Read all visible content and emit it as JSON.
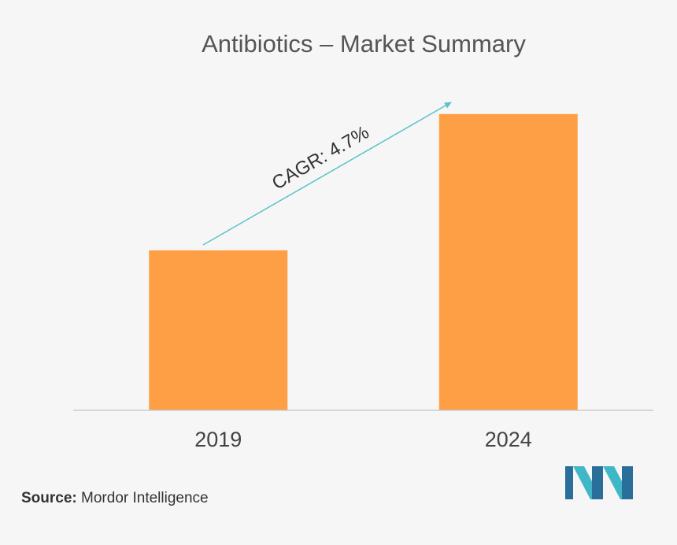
{
  "chart_data": {
    "type": "bar",
    "title": "Antibiotics – Market Summary",
    "categories": [
      "2019",
      "2024"
    ],
    "values": [
      54,
      100
    ],
    "xlabel": "",
    "ylabel": "",
    "ylim": [
      0,
      105
    ],
    "grid": false,
    "annotation": "CAGR: 4.7%",
    "colors": {
      "bar": "#ff9f45",
      "arrow": "#5bc2c9",
      "axis": "#cccccc",
      "text": "#555555"
    }
  },
  "source": {
    "label": "Source:",
    "text": "Mordor Intelligence"
  },
  "logo": {
    "icon": "mordor-intelligence-logo-icon",
    "colors": [
      "#2a6f9a",
      "#3fb7c7"
    ]
  }
}
